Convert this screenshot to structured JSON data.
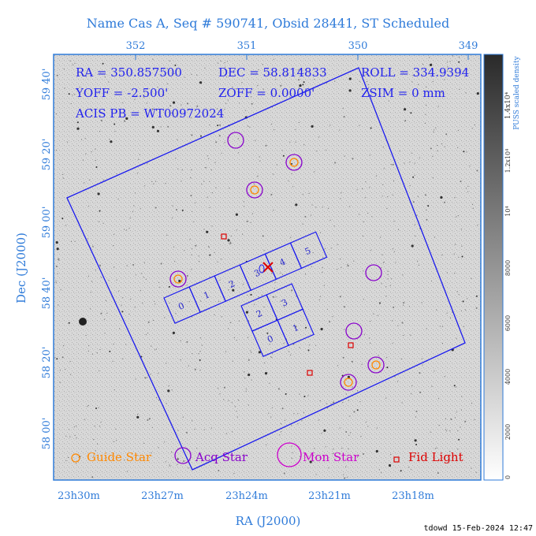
{
  "header": {
    "title": "Name Cas A, Seq # 590741, Obsid 28441, ST Scheduled"
  },
  "info": {
    "ra": "RA = 350.857500",
    "dec": "DEC = 58.814833",
    "roll": "ROLL = 334.9394",
    "yoff": "YOFF = -2.500'",
    "zoff": "ZOFF = 0.0000'",
    "zsim": "ZSIM = 0 mm",
    "acis": "ACIS PB = WT00972024"
  },
  "axes": {
    "xlabel": "RA (J2000)",
    "ylabel": "Dec (J2000)",
    "top_ticks": [
      "352",
      "351",
      "350",
      "349"
    ],
    "bottom_ticks": [
      "23h30m",
      "23h27m",
      "23h24m",
      "23h21m",
      "23h18m"
    ],
    "left_ticks": [
      "59 40'",
      "59 20'",
      "59 00'",
      "58 40'",
      "58 20'",
      "58 00'"
    ]
  },
  "colorbar": {
    "label1": "PUSS scaled density",
    "label2": "1.4x10⁴",
    "ticks": [
      "0",
      "2000",
      "4000",
      "6000",
      "8000",
      "10⁴",
      "1.2x10⁴",
      "1.4x10⁴"
    ]
  },
  "chips": {
    "top": [
      "0",
      "1",
      "2",
      "3",
      "4",
      "5"
    ],
    "bottom": [
      "2",
      "3",
      "0",
      "1"
    ]
  },
  "legend": {
    "guide": "Guide Star",
    "acq": "Acq Star",
    "mon": "Mon Star",
    "fid": "Fid Light"
  },
  "colors": {
    "guide": "#ff8800",
    "acq": "#8800cc",
    "mon": "#cc00cc",
    "fid": "#dd0000",
    "outline": "#1a1aee",
    "axis": "#2f7bd9"
  },
  "footer": "tdowd 15-Feb-2024 12:47"
}
